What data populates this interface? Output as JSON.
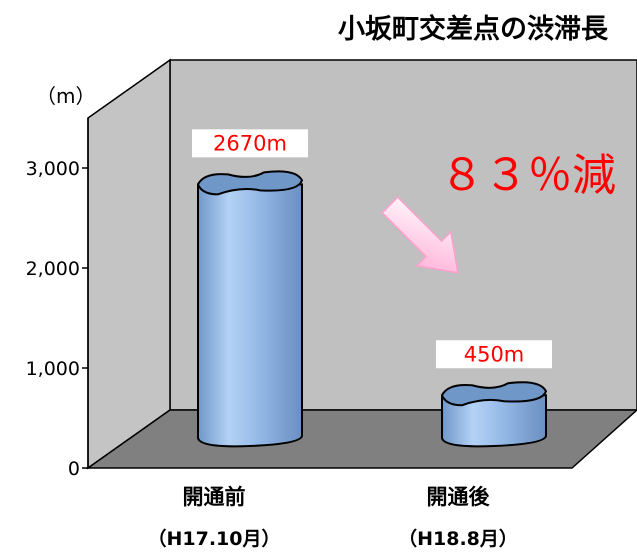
{
  "chart_data": {
    "type": "bar",
    "title": "小坂町交差点の渋滞長",
    "ylabel": "（m）",
    "ylim": [
      0,
      3000
    ],
    "yticks": [
      0,
      1000,
      2000,
      3000
    ],
    "ytick_labels": [
      "0",
      "1,000",
      "2,000",
      "3,000"
    ],
    "categories": [
      "開通前",
      "開通後"
    ],
    "category_sublabels": [
      "（H17.10月）",
      "（H18.8月）"
    ],
    "values": [
      2670,
      450
    ],
    "data_labels": [
      "2670m",
      "450m"
    ],
    "annotation": "８３％減",
    "colors": {
      "bar": "#8fb4e3",
      "bar_dark": "#6f97c8",
      "wall": "#c0c0c0",
      "floor": "#808080",
      "annotation": "#ff0000",
      "arrow": "#ffb6d9"
    }
  }
}
